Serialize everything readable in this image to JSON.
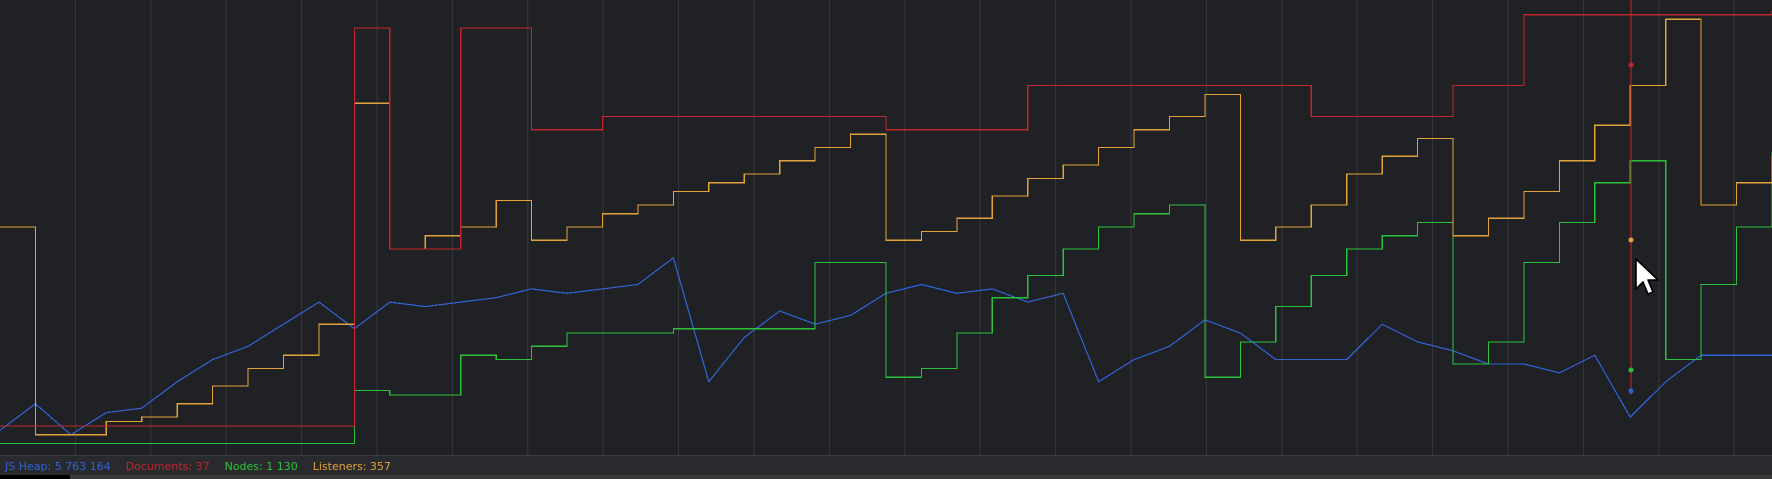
{
  "legend": {
    "js_heap": "JS Heap: 5 763 164",
    "documents": "Documents: 37",
    "nodes": "Nodes: 1 130",
    "listeners": "Listeners: 357"
  },
  "colors": {
    "background": "#202124",
    "grid": "#36383c",
    "js_heap": "#2f63d6",
    "documents": "#c0262c",
    "nodes": "#2bc23b",
    "listeners": "#e3a23a"
  },
  "chart_data": {
    "type": "line",
    "title": "",
    "xlabel": "",
    "ylabel": "",
    "grid": "vertical lines only",
    "x": [
      0,
      2,
      4,
      6,
      8,
      10,
      12,
      14,
      16,
      18,
      20,
      22,
      24,
      26,
      28,
      30,
      32,
      34,
      36,
      38,
      40,
      42,
      44,
      46,
      48,
      50,
      52,
      54,
      56,
      58,
      60,
      62,
      64,
      66,
      68,
      70,
      72,
      74,
      76,
      78,
      80,
      82,
      84,
      86,
      88,
      90,
      92,
      94,
      96,
      98,
      100
    ],
    "series": [
      {
        "name": "JS Heap",
        "line": "smooth",
        "values": [
          96,
          90,
          97,
          92,
          91,
          85,
          80,
          77,
          72,
          67,
          73,
          67,
          68,
          67,
          66,
          64,
          65,
          64,
          63,
          57,
          85,
          75,
          69,
          72,
          70,
          65,
          63,
          65,
          64,
          67,
          65,
          85,
          80,
          77,
          71,
          74,
          80,
          80,
          80,
          72,
          76,
          78,
          81,
          81,
          83,
          79,
          93,
          85,
          79,
          79,
          79
        ]
      },
      {
        "name": "Documents",
        "line": "step",
        "values": [
          95,
          95,
          95,
          95,
          95,
          95,
          95,
          95,
          95,
          95,
          5,
          55,
          55,
          5,
          5,
          28,
          28,
          25,
          25,
          25,
          25,
          25,
          25,
          25,
          25,
          28,
          28,
          28,
          28,
          18,
          18,
          18,
          18,
          18,
          18,
          18,
          18,
          25,
          25,
          25,
          25,
          18,
          18,
          2,
          2,
          2,
          2,
          2,
          2,
          2,
          1
        ]
      },
      {
        "name": "Nodes",
        "line": "step",
        "values": [
          99,
          99,
          99,
          99,
          99,
          99,
          99,
          99,
          99,
          99,
          87,
          88,
          88,
          79,
          80,
          77,
          74,
          74,
          74,
          73,
          73,
          73,
          73,
          58,
          58,
          84,
          82,
          74,
          66,
          61,
          55,
          50,
          47,
          45,
          84,
          76,
          68,
          61,
          55,
          52,
          49,
          81,
          76,
          58,
          49,
          40,
          35,
          80,
          63,
          50,
          33
        ]
      },
      {
        "name": "Listeners",
        "line": "step",
        "values": [
          50,
          97,
          97,
          94,
          93,
          90,
          86,
          82,
          79,
          72,
          22,
          55,
          52,
          50,
          44,
          53,
          50,
          47,
          45,
          42,
          40,
          38,
          35,
          32,
          29,
          53,
          51,
          48,
          43,
          39,
          36,
          32,
          28,
          25,
          20,
          53,
          50,
          45,
          38,
          34,
          30,
          52,
          48,
          42,
          35,
          27,
          18,
          3,
          45,
          40,
          34
        ]
      }
    ]
  }
}
